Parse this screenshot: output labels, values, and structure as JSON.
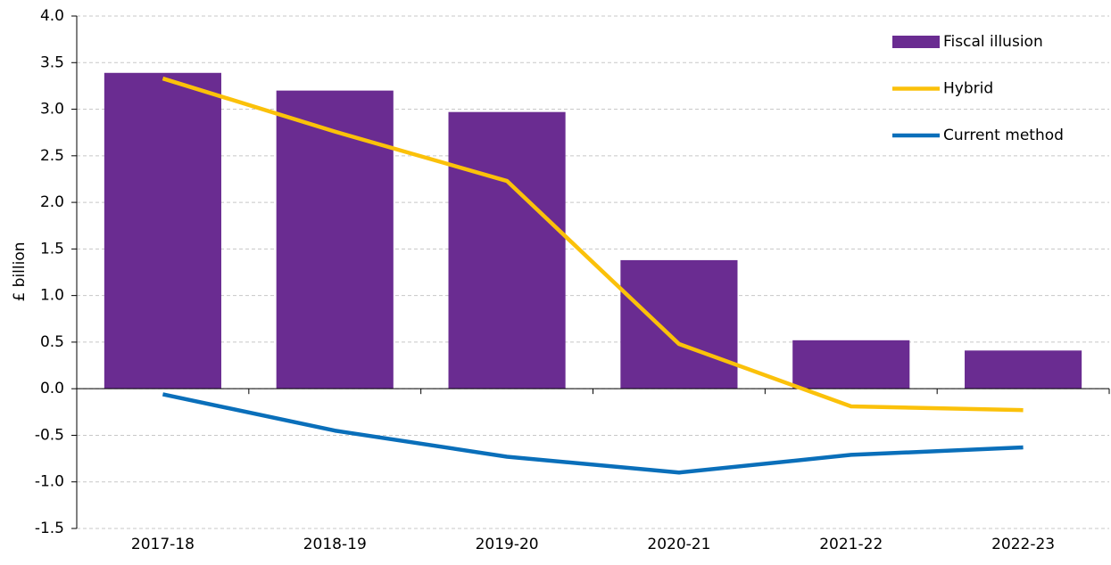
{
  "chart_data": {
    "type": "bar-line",
    "y_label": "£ billion",
    "categories": [
      "2017-18",
      "2018-19",
      "2019-20",
      "2020-21",
      "2021-22",
      "2022-23"
    ],
    "series": [
      {
        "name": "Fiscal illusion",
        "type": "bar",
        "color": "#6a2c91",
        "values": [
          3.39,
          3.2,
          2.97,
          1.38,
          0.52,
          0.41
        ]
      },
      {
        "name": "Hybrid",
        "type": "line",
        "color": "#fbc10a",
        "values": [
          3.33,
          2.76,
          2.23,
          0.48,
          -0.19,
          -0.23
        ]
      },
      {
        "name": "Current method",
        "type": "line",
        "color": "#0a6fba",
        "values": [
          -0.06,
          -0.45,
          -0.73,
          -0.9,
          -0.71,
          -0.63
        ]
      }
    ],
    "ylim": [
      -1.5,
      4.0
    ],
    "yticks": [
      {
        "value": 4.0,
        "label": "4.0"
      },
      {
        "value": 3.5,
        "label": "3.5"
      },
      {
        "value": 3.0,
        "label": "3.0"
      },
      {
        "value": 2.5,
        "label": "2.5"
      },
      {
        "value": 2.0,
        "label": "2.0"
      },
      {
        "value": 1.5,
        "label": "1.5"
      },
      {
        "value": 1.0,
        "label": "1.0"
      },
      {
        "value": 0.5,
        "label": "0.5"
      },
      {
        "value": 0,
        "label": "0.0"
      },
      {
        "value": -0.5,
        "label": "-0.5"
      },
      {
        "value": -1.0,
        "label": "-1.0"
      },
      {
        "value": -1.5,
        "label": "-1.5"
      }
    ],
    "grid": true,
    "legend": "upper right"
  }
}
